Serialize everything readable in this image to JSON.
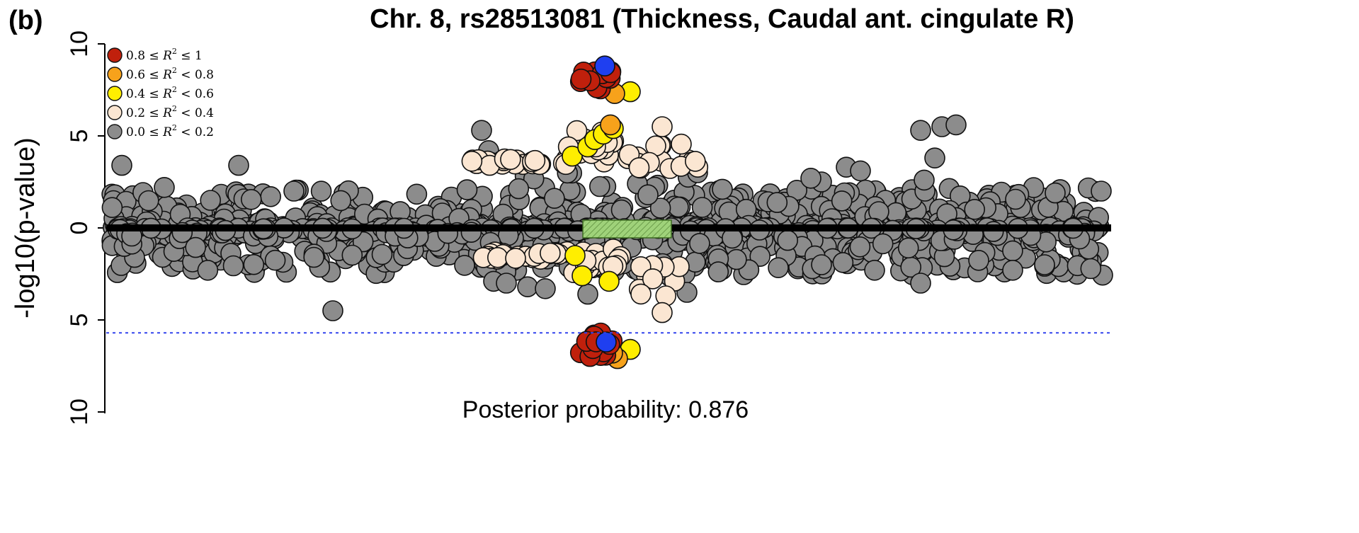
{
  "panel_label": "(b)",
  "chart_data": {
    "type": "scatter",
    "title": "Chr. 8, rs28513081 (Thickness, Caudal ant. cingulate R)",
    "ylabel": "-log10(p-value)",
    "y_ticks_top": [
      "10",
      "5",
      "0"
    ],
    "y_ticks_bottom": [
      "5",
      "10"
    ],
    "ylim": [
      -10,
      10
    ],
    "significance_line": {
      "value": -5.7,
      "style": "dotted",
      "color": "#3344ee"
    },
    "annotation": "Posterior probability: 0.876",
    "legend": {
      "placement": "top-left",
      "entries": [
        {
          "label_left": "0.8 ≤",
          "label_mid": "R",
          "label_right": "≤ 1",
          "color": "#c0200c"
        },
        {
          "label_left": "0.6 ≤",
          "label_mid": "R",
          "label_right": "< 0.8",
          "color": "#f7a21b"
        },
        {
          "label_left": "0.4 ≤",
          "label_mid": "R",
          "label_right": "< 0.6",
          "color": "#ffee00"
        },
        {
          "label_left": "0.2 ≤",
          "label_mid": "R",
          "label_right": "< 0.4",
          "color": "#fbe6d2"
        },
        {
          "label_left": "0.0 ≤",
          "label_mid": "R",
          "label_right": "< 0.2",
          "color": "#8c8c8c"
        }
      ],
      "superscript": "2"
    },
    "lead_snp": {
      "top_value": 8.8,
      "bottom_value": -6.2,
      "color": "#1f3ff0"
    },
    "gene_box": {
      "color": "#9fd27a"
    },
    "series": [
      {
        "r2_bin": "0.8-1",
        "top_values": [
          7.6,
          7.8,
          8.0,
          8.2,
          8.1,
          7.7,
          7.9,
          8.4
        ],
        "bottom_values": [
          -5.8,
          -6.1,
          -6.5,
          -6.7,
          -6.3,
          -6.9,
          -6.0
        ]
      },
      {
        "r2_bin": "0.6-0.8",
        "top_values": [
          7.3,
          5.6
        ],
        "bottom_values": [
          -7.1,
          -6.6
        ]
      },
      {
        "r2_bin": "0.4-0.6",
        "top_values": [
          7.4,
          5.2,
          4.8,
          4.5,
          3.9
        ],
        "bottom_values": [
          -2.6,
          -1.5,
          -6.7,
          -2.9
        ]
      },
      {
        "r2_bin": "0.2-0.4",
        "top_values": [
          3.6,
          3.9,
          4.6,
          5.5,
          4.2
        ],
        "bottom_values": [
          -1.4,
          -1.6,
          -3.1,
          -4.5,
          -2.3
        ]
      },
      {
        "r2_bin": "0-0.2",
        "top_values": [
          0.5,
          1.0,
          2.0,
          3.4,
          5.6
        ],
        "bottom_values": [
          -0.5,
          -1.2,
          -2.5,
          -4.5
        ]
      }
    ]
  }
}
